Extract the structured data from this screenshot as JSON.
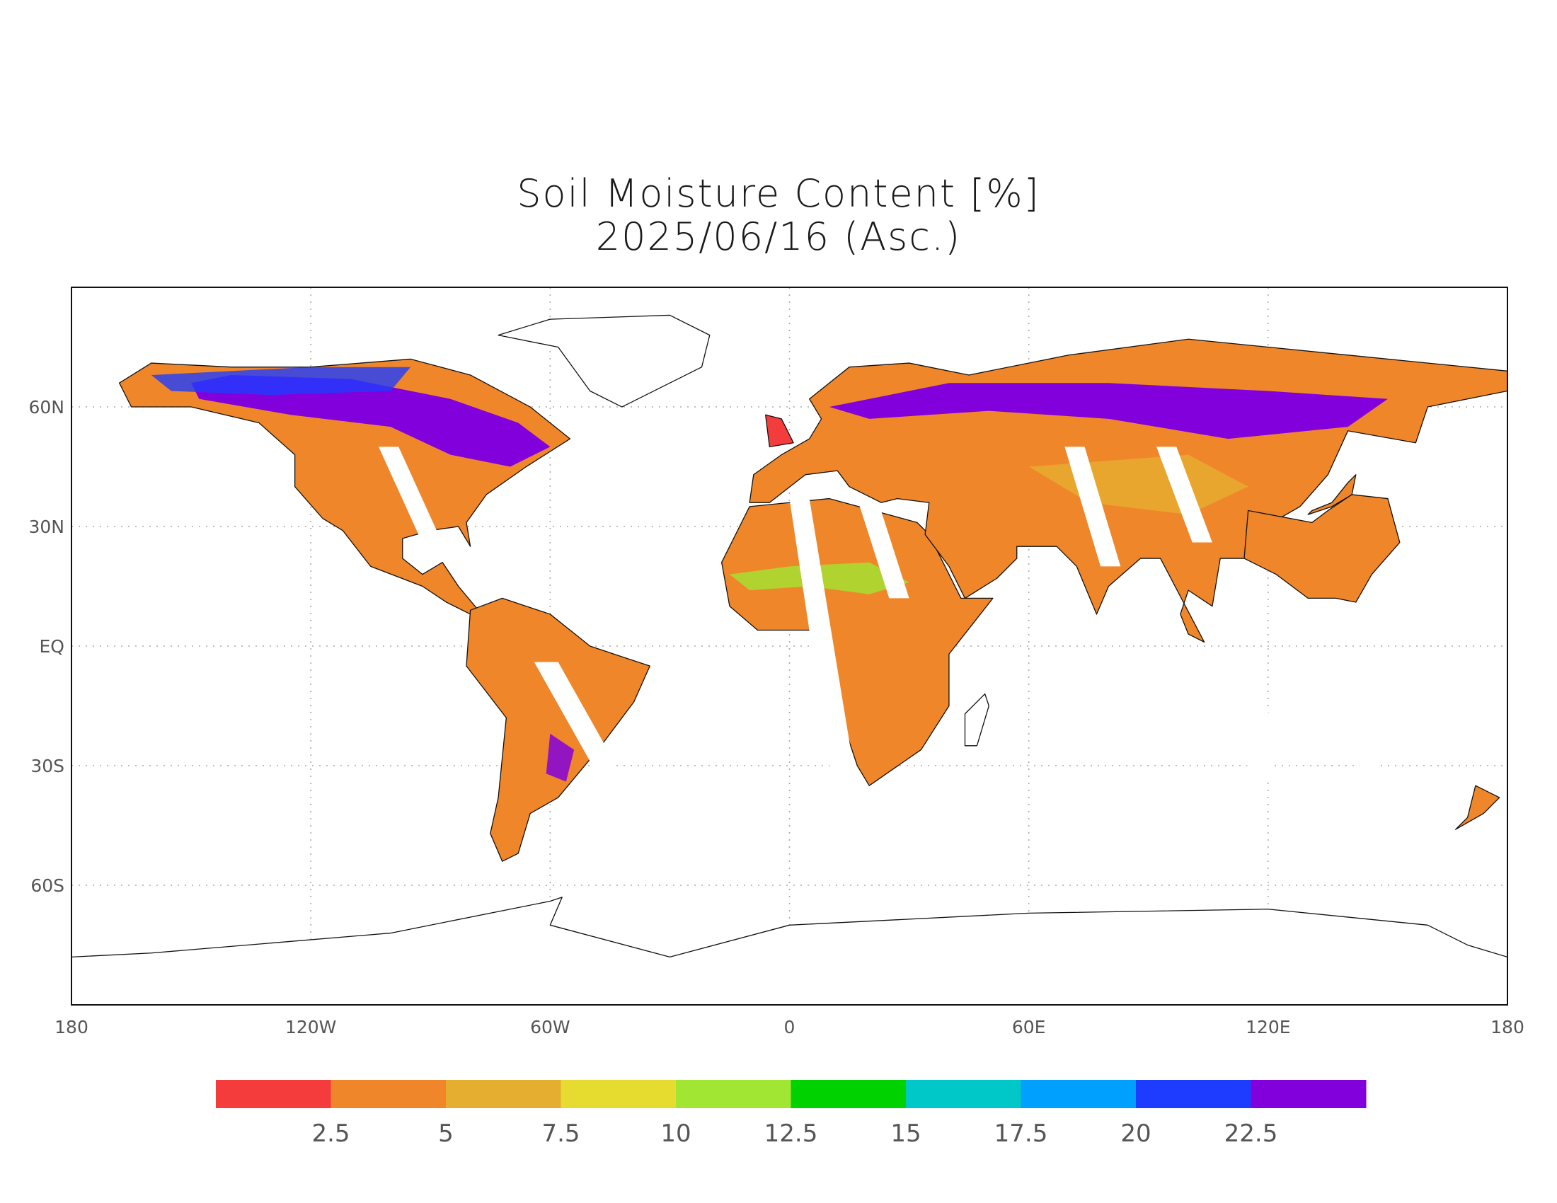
{
  "chart_data": {
    "type": "map",
    "title": "Soil Moisture Content [%]",
    "subtitle": "2025/06/16 (Asc.)",
    "xlim": [
      -180,
      180
    ],
    "ylim": [
      -90,
      90
    ],
    "xticks": [
      {
        "value": -180,
        "label": "180"
      },
      {
        "value": -120,
        "label": "120W"
      },
      {
        "value": -60,
        "label": "60W"
      },
      0,
      {
        "value": 60,
        "label": "60E"
      },
      {
        "value": 120,
        "label": "120E"
      },
      180
    ],
    "yticks": [
      {
        "value": 60,
        "label": "60N"
      },
      {
        "value": 30,
        "label": "30N"
      },
      {
        "value": 0,
        "label": "EQ"
      },
      {
        "value": -30,
        "label": "30S"
      },
      {
        "value": -60,
        "label": "60S"
      }
    ],
    "grid": true,
    "colorbar": {
      "colors": [
        "#f53c3c",
        "#f0862a",
        "#e6ae30",
        "#e6dc30",
        "#a0e632",
        "#00d200",
        "#00c8c8",
        "#00a0ff",
        "#1e3cff",
        "#8200dc"
      ],
      "levels": [
        2.5,
        5,
        7.5,
        10,
        12.5,
        15,
        17.5,
        20,
        22.5
      ]
    }
  }
}
